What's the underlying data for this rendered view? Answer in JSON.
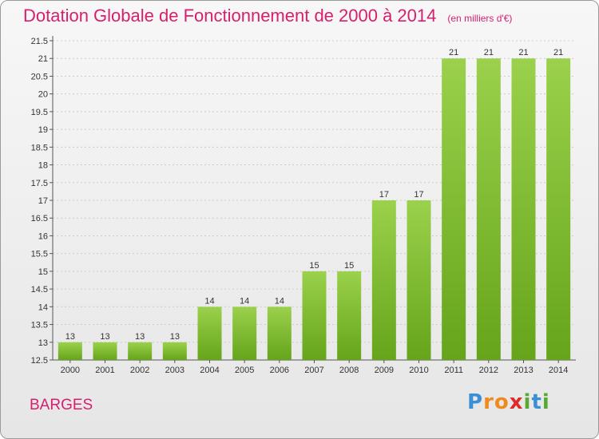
{
  "page": {
    "title": "Dotation Globale de Fonctionnement de 2000 à 2014",
    "subtitle": "(en milliers d'€)",
    "commune": "BARGES",
    "logo": {
      "text": "Proxiti",
      "letters": [
        "P",
        "r",
        "o",
        "x",
        "i",
        "t",
        "i"
      ],
      "colors": [
        "#3a8fd6",
        "#f08a1c",
        "#f08a1c",
        "#e02a2a",
        "#58a92f",
        "#3a8fd6",
        "#58a92f"
      ]
    }
  },
  "colors": {
    "bar_light": "#9bd14c",
    "bar_dark": "#65a41b",
    "grid": "#cccccc",
    "title": "#d6206e"
  },
  "chart_data": {
    "type": "bar",
    "title": "Dotation Globale de Fonctionnement de 2000 à 2014",
    "subtitle": "(en milliers d'€)",
    "categories": [
      "2000",
      "2001",
      "2002",
      "2003",
      "2004",
      "2005",
      "2006",
      "2007",
      "2008",
      "2009",
      "2010",
      "2011",
      "2012",
      "2013",
      "2014"
    ],
    "values": [
      13,
      13,
      13,
      13,
      14,
      14,
      14,
      15,
      15,
      17,
      17,
      21,
      21,
      21,
      21
    ],
    "ylim": [
      12.5,
      21.5
    ],
    "yticks": [
      "12.5",
      "13",
      "13.5",
      "14",
      "14.5",
      "15",
      "15.5",
      "16",
      "16.5",
      "17",
      "17.5",
      "18",
      "18.5",
      "19",
      "19.5",
      "20",
      "20.5",
      "21",
      "21.5"
    ],
    "grid": true
  }
}
